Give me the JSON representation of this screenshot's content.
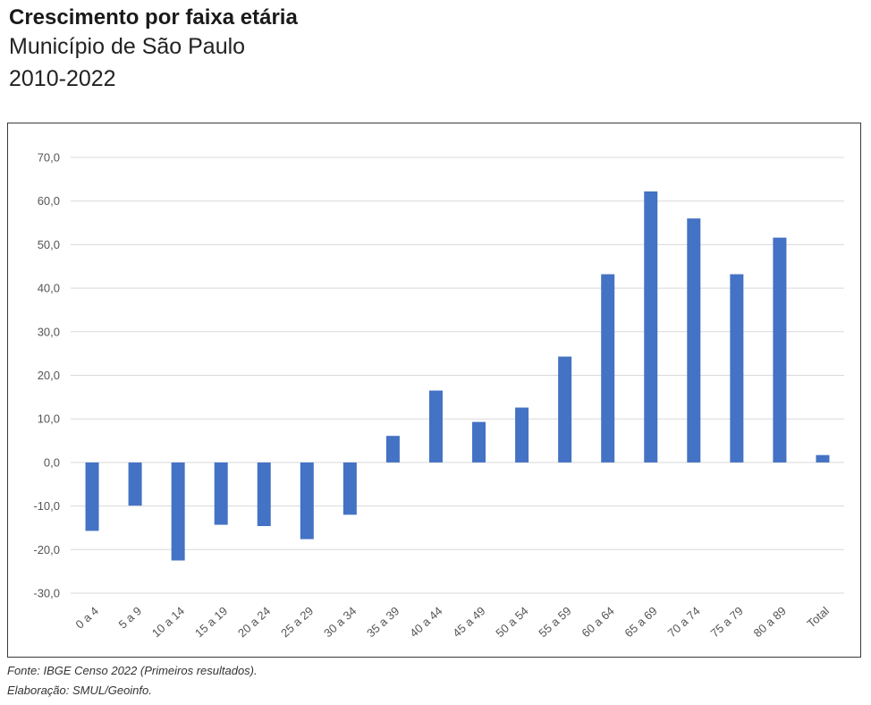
{
  "header": {
    "title": "Crescimento por faixa etária",
    "subtitle": "Município de São Paulo",
    "period": "2010-2022"
  },
  "footer": {
    "source": "Fonte: IBGE Censo 2022 (Primeiros resultados).",
    "credits": "Elaboração: SMUL/Geoinfo."
  },
  "colors": {
    "bar": "#4472c4",
    "grid": "#d9d9d9"
  },
  "chart_data": {
    "type": "bar",
    "title": "Crescimento por faixa etária",
    "xlabel": "",
    "ylabel": "",
    "ylim": [
      -30,
      70
    ],
    "yticks": [
      70,
      60,
      50,
      40,
      30,
      20,
      10,
      0,
      -10,
      -20,
      -30
    ],
    "ytick_labels": [
      "70,0",
      "60,0",
      "50,0",
      "40,0",
      "30,0",
      "20,0",
      "10,0",
      "0,0",
      "-10,0",
      "-20,0",
      "-30,0"
    ],
    "grid": true,
    "legend": "none",
    "categories": [
      "0 a 4",
      "5 a 9",
      "10 a 14",
      "15 a 19",
      "20 a 24",
      "25 a 29",
      "30 a 34",
      "35 a 39",
      "40 a 44",
      "45 a 49",
      "50 a 54",
      "55 a 59",
      "60 a 64",
      "65 a 69",
      "70 a 74",
      "75 a 79",
      "80 a 89",
      "Total"
    ],
    "values": [
      -15.7,
      -9.9,
      -22.5,
      -14.3,
      -14.6,
      -17.6,
      -12.0,
      6.1,
      16.5,
      9.3,
      12.6,
      24.3,
      43.2,
      62.2,
      56.0,
      43.2,
      51.6,
      1.7
    ]
  }
}
